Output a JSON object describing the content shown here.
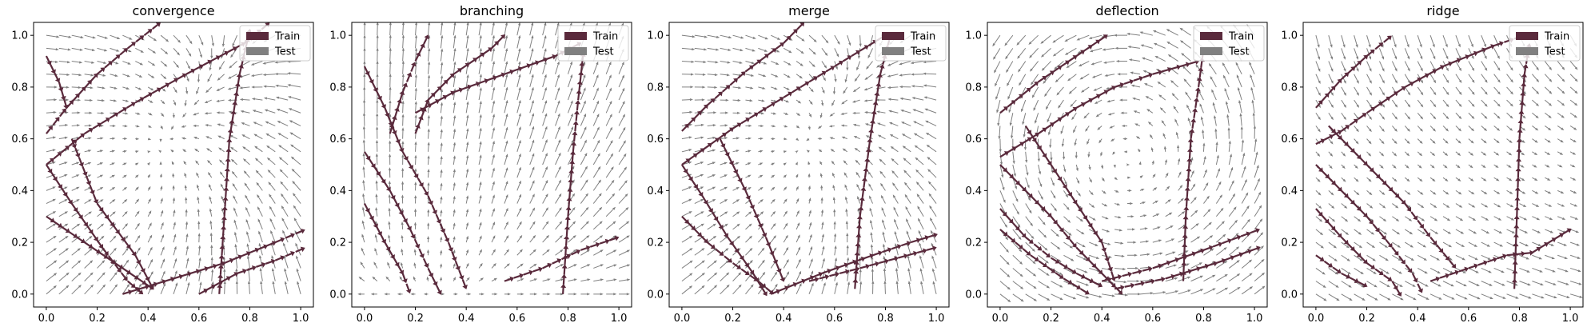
{
  "colors": {
    "train": "#5a2a3c",
    "test": "#808080"
  },
  "legend": {
    "train_label": "Train",
    "test_label": "Test",
    "placement": "top-right"
  },
  "chart_data": [
    {
      "type": "quiver",
      "title": "convergence",
      "xlim": [
        -0.05,
        1.05
      ],
      "ylim": [
        -0.05,
        1.05
      ],
      "xticks": [
        "0.0",
        "0.2",
        "0.4",
        "0.6",
        "0.8",
        "1.0"
      ],
      "yticks": [
        "0.0",
        "0.2",
        "0.4",
        "0.6",
        "0.8",
        "1.0"
      ],
      "field": {
        "kind": "convergence",
        "center": [
          0.42,
          0.55
        ]
      },
      "train_paths": [
        [
          [
            0.0,
            0.5
          ],
          [
            0.15,
            0.62
          ],
          [
            0.35,
            0.74
          ],
          [
            0.55,
            0.85
          ],
          [
            0.78,
            0.97
          ],
          [
            0.88,
            1.05
          ]
        ],
        [
          [
            0.0,
            0.62
          ],
          [
            0.08,
            0.72
          ],
          [
            0.2,
            0.85
          ],
          [
            0.32,
            0.95
          ],
          [
            0.45,
            1.05
          ]
        ],
        [
          [
            0.0,
            0.92
          ],
          [
            0.05,
            0.82
          ],
          [
            0.08,
            0.72
          ]
        ],
        [
          [
            0.0,
            0.5
          ],
          [
            0.1,
            0.35
          ],
          [
            0.22,
            0.18
          ],
          [
            0.32,
            0.05
          ],
          [
            0.38,
            0.0
          ]
        ],
        [
          [
            0.0,
            0.3
          ],
          [
            0.15,
            0.2
          ],
          [
            0.3,
            0.1
          ],
          [
            0.42,
            0.02
          ]
        ],
        [
          [
            0.1,
            0.6
          ],
          [
            0.2,
            0.35
          ],
          [
            0.35,
            0.15
          ],
          [
            0.42,
            0.02
          ]
        ],
        [
          [
            0.68,
            0.0
          ],
          [
            0.7,
            0.3
          ],
          [
            0.72,
            0.6
          ],
          [
            0.76,
            0.85
          ],
          [
            0.8,
            1.02
          ]
        ],
        [
          [
            0.3,
            0.0
          ],
          [
            0.5,
            0.06
          ],
          [
            0.7,
            0.12
          ],
          [
            0.9,
            0.2
          ],
          [
            1.02,
            0.25
          ]
        ],
        [
          [
            0.6,
            0.0
          ],
          [
            0.75,
            0.08
          ],
          [
            0.9,
            0.13
          ],
          [
            1.02,
            0.18
          ]
        ]
      ]
    },
    {
      "type": "quiver",
      "title": "branching",
      "xlim": [
        -0.05,
        1.05
      ],
      "ylim": [
        -0.05,
        1.05
      ],
      "xticks": [
        "0.0",
        "0.2",
        "0.4",
        "0.6",
        "0.8",
        "1.0"
      ],
      "yticks": [
        "0.0",
        "0.2",
        "0.4",
        "0.6",
        "0.8",
        "1.0"
      ],
      "field": {
        "kind": "branching",
        "center": [
          0.3,
          0.0
        ]
      },
      "train_paths": [
        [
          [
            0.0,
            0.88
          ],
          [
            0.08,
            0.72
          ],
          [
            0.15,
            0.55
          ],
          [
            0.25,
            0.38
          ],
          [
            0.33,
            0.2
          ],
          [
            0.4,
            0.02
          ]
        ],
        [
          [
            0.0,
            0.55
          ],
          [
            0.1,
            0.4
          ],
          [
            0.18,
            0.25
          ],
          [
            0.25,
            0.1
          ],
          [
            0.3,
            0.0
          ]
        ],
        [
          [
            0.0,
            0.35
          ],
          [
            0.08,
            0.2
          ],
          [
            0.15,
            0.08
          ],
          [
            0.18,
            0.0
          ]
        ],
        [
          [
            0.2,
            0.62
          ],
          [
            0.25,
            0.75
          ],
          [
            0.35,
            0.85
          ],
          [
            0.5,
            0.95
          ],
          [
            0.55,
            1.0
          ]
        ],
        [
          [
            0.2,
            0.7
          ],
          [
            0.35,
            0.78
          ],
          [
            0.55,
            0.85
          ],
          [
            0.75,
            0.92
          ],
          [
            0.85,
            0.97
          ]
        ],
        [
          [
            0.1,
            0.62
          ],
          [
            0.15,
            0.78
          ],
          [
            0.2,
            0.9
          ],
          [
            0.25,
            1.0
          ]
        ],
        [
          [
            0.78,
            0.0
          ],
          [
            0.8,
            0.3
          ],
          [
            0.82,
            0.55
          ],
          [
            0.84,
            0.75
          ],
          [
            0.86,
            0.93
          ]
        ],
        [
          [
            0.55,
            0.05
          ],
          [
            0.7,
            0.1
          ],
          [
            0.85,
            0.17
          ],
          [
            1.0,
            0.22
          ]
        ]
      ]
    },
    {
      "type": "quiver",
      "title": "merge",
      "xlim": [
        -0.05,
        1.05
      ],
      "ylim": [
        -0.05,
        1.05
      ],
      "xticks": [
        "0.0",
        "0.2",
        "0.4",
        "0.6",
        "0.8",
        "1.0"
      ],
      "yticks": [
        "0.0",
        "0.2",
        "0.4",
        "0.6",
        "0.8",
        "1.0"
      ],
      "field": {
        "kind": "convergence",
        "center": [
          0.45,
          0.55
        ]
      },
      "train_paths": [
        [
          [
            0.0,
            0.5
          ],
          [
            0.2,
            0.64
          ],
          [
            0.4,
            0.76
          ],
          [
            0.6,
            0.88
          ],
          [
            0.8,
            1.0
          ]
        ],
        [
          [
            0.0,
            0.63
          ],
          [
            0.1,
            0.73
          ],
          [
            0.25,
            0.86
          ],
          [
            0.4,
            0.97
          ],
          [
            0.48,
            1.05
          ]
        ],
        [
          [
            0.0,
            0.5
          ],
          [
            0.08,
            0.38
          ],
          [
            0.18,
            0.22
          ],
          [
            0.28,
            0.08
          ],
          [
            0.33,
            0.0
          ]
        ],
        [
          [
            0.0,
            0.3
          ],
          [
            0.1,
            0.2
          ],
          [
            0.2,
            0.12
          ],
          [
            0.3,
            0.05
          ],
          [
            0.36,
            0.0
          ]
        ],
        [
          [
            0.15,
            0.6
          ],
          [
            0.25,
            0.4
          ],
          [
            0.33,
            0.22
          ],
          [
            0.4,
            0.05
          ]
        ],
        [
          [
            0.68,
            0.02
          ],
          [
            0.7,
            0.3
          ],
          [
            0.74,
            0.6
          ],
          [
            0.78,
            0.85
          ],
          [
            0.82,
            1.0
          ]
        ],
        [
          [
            0.35,
            0.0
          ],
          [
            0.55,
            0.08
          ],
          [
            0.75,
            0.15
          ],
          [
            0.9,
            0.2
          ],
          [
            1.0,
            0.23
          ]
        ],
        [
          [
            0.5,
            0.05
          ],
          [
            0.7,
            0.1
          ],
          [
            0.85,
            0.14
          ],
          [
            1.0,
            0.18
          ]
        ]
      ]
    },
    {
      "type": "quiver",
      "title": "deflection",
      "xlim": [
        -0.05,
        1.05
      ],
      "ylim": [
        -0.05,
        1.05
      ],
      "xticks": [
        "0.0",
        "0.2",
        "0.4",
        "0.6",
        "0.8",
        "1.0"
      ],
      "yticks": [
        "0.0",
        "0.2",
        "0.4",
        "0.6",
        "0.8",
        "1.0"
      ],
      "field": {
        "kind": "vortex",
        "center": [
          0.5,
          0.5
        ]
      },
      "train_paths": [
        [
          [
            0.0,
            0.7
          ],
          [
            0.15,
            0.82
          ],
          [
            0.3,
            0.92
          ],
          [
            0.42,
            1.0
          ]
        ],
        [
          [
            0.0,
            0.53
          ],
          [
            0.15,
            0.62
          ],
          [
            0.3,
            0.72
          ],
          [
            0.45,
            0.8
          ],
          [
            0.6,
            0.85
          ],
          [
            0.78,
            0.9
          ]
        ],
        [
          [
            0.0,
            0.5
          ],
          [
            0.1,
            0.4
          ],
          [
            0.2,
            0.3
          ],
          [
            0.3,
            0.18
          ],
          [
            0.4,
            0.08
          ],
          [
            0.48,
            0.0
          ]
        ],
        [
          [
            0.0,
            0.33
          ],
          [
            0.1,
            0.22
          ],
          [
            0.2,
            0.14
          ],
          [
            0.3,
            0.08
          ],
          [
            0.4,
            0.03
          ]
        ],
        [
          [
            0.0,
            0.25
          ],
          [
            0.12,
            0.15
          ],
          [
            0.25,
            0.06
          ],
          [
            0.35,
            0.0
          ]
        ],
        [
          [
            0.1,
            0.65
          ],
          [
            0.2,
            0.5
          ],
          [
            0.3,
            0.35
          ],
          [
            0.4,
            0.2
          ],
          [
            0.45,
            0.05
          ]
        ],
        [
          [
            0.72,
            0.05
          ],
          [
            0.73,
            0.3
          ],
          [
            0.75,
            0.6
          ],
          [
            0.78,
            0.8
          ],
          [
            0.8,
            0.95
          ]
        ],
        [
          [
            0.4,
            0.05
          ],
          [
            0.6,
            0.1
          ],
          [
            0.8,
            0.17
          ],
          [
            1.02,
            0.25
          ]
        ],
        [
          [
            0.45,
            0.02
          ],
          [
            0.65,
            0.06
          ],
          [
            0.85,
            0.12
          ],
          [
            1.02,
            0.18
          ]
        ]
      ]
    },
    {
      "type": "quiver",
      "title": "ridge",
      "xlim": [
        -0.05,
        1.05
      ],
      "ylim": [
        -0.05,
        1.05
      ],
      "xticks": [
        "0.0",
        "0.2",
        "0.4",
        "0.6",
        "0.8",
        "1.0"
      ],
      "yticks": [
        "0.0",
        "0.2",
        "0.4",
        "0.6",
        "0.8",
        "1.0"
      ],
      "field": {
        "kind": "ridge",
        "center": [
          0.5,
          0.5
        ]
      },
      "train_paths": [
        [
          [
            0.0,
            0.72
          ],
          [
            0.1,
            0.83
          ],
          [
            0.2,
            0.92
          ],
          [
            0.3,
            1.0
          ]
        ],
        [
          [
            0.0,
            0.58
          ],
          [
            0.1,
            0.63
          ],
          [
            0.2,
            0.7
          ],
          [
            0.35,
            0.8
          ],
          [
            0.5,
            0.88
          ],
          [
            0.7,
            0.96
          ],
          [
            0.82,
            1.0
          ]
        ],
        [
          [
            0.0,
            0.5
          ],
          [
            0.1,
            0.4
          ],
          [
            0.2,
            0.3
          ],
          [
            0.3,
            0.18
          ],
          [
            0.38,
            0.08
          ],
          [
            0.42,
            0.0
          ]
        ],
        [
          [
            0.0,
            0.33
          ],
          [
            0.1,
            0.22
          ],
          [
            0.2,
            0.12
          ],
          [
            0.3,
            0.05
          ],
          [
            0.33,
            0.0
          ]
        ],
        [
          [
            0.0,
            0.15
          ],
          [
            0.1,
            0.08
          ],
          [
            0.2,
            0.03
          ]
        ],
        [
          [
            0.05,
            0.65
          ],
          [
            0.15,
            0.55
          ],
          [
            0.25,
            0.45
          ],
          [
            0.35,
            0.35
          ],
          [
            0.45,
            0.22
          ],
          [
            0.55,
            0.1
          ]
        ],
        [
          [
            0.78,
            0.02
          ],
          [
            0.79,
            0.3
          ],
          [
            0.8,
            0.6
          ],
          [
            0.82,
            0.85
          ],
          [
            0.84,
            0.97
          ]
        ],
        [
          [
            0.45,
            0.05
          ],
          [
            0.6,
            0.1
          ],
          [
            0.75,
            0.15
          ],
          [
            0.85,
            0.16
          ],
          [
            1.0,
            0.25
          ]
        ]
      ]
    }
  ]
}
